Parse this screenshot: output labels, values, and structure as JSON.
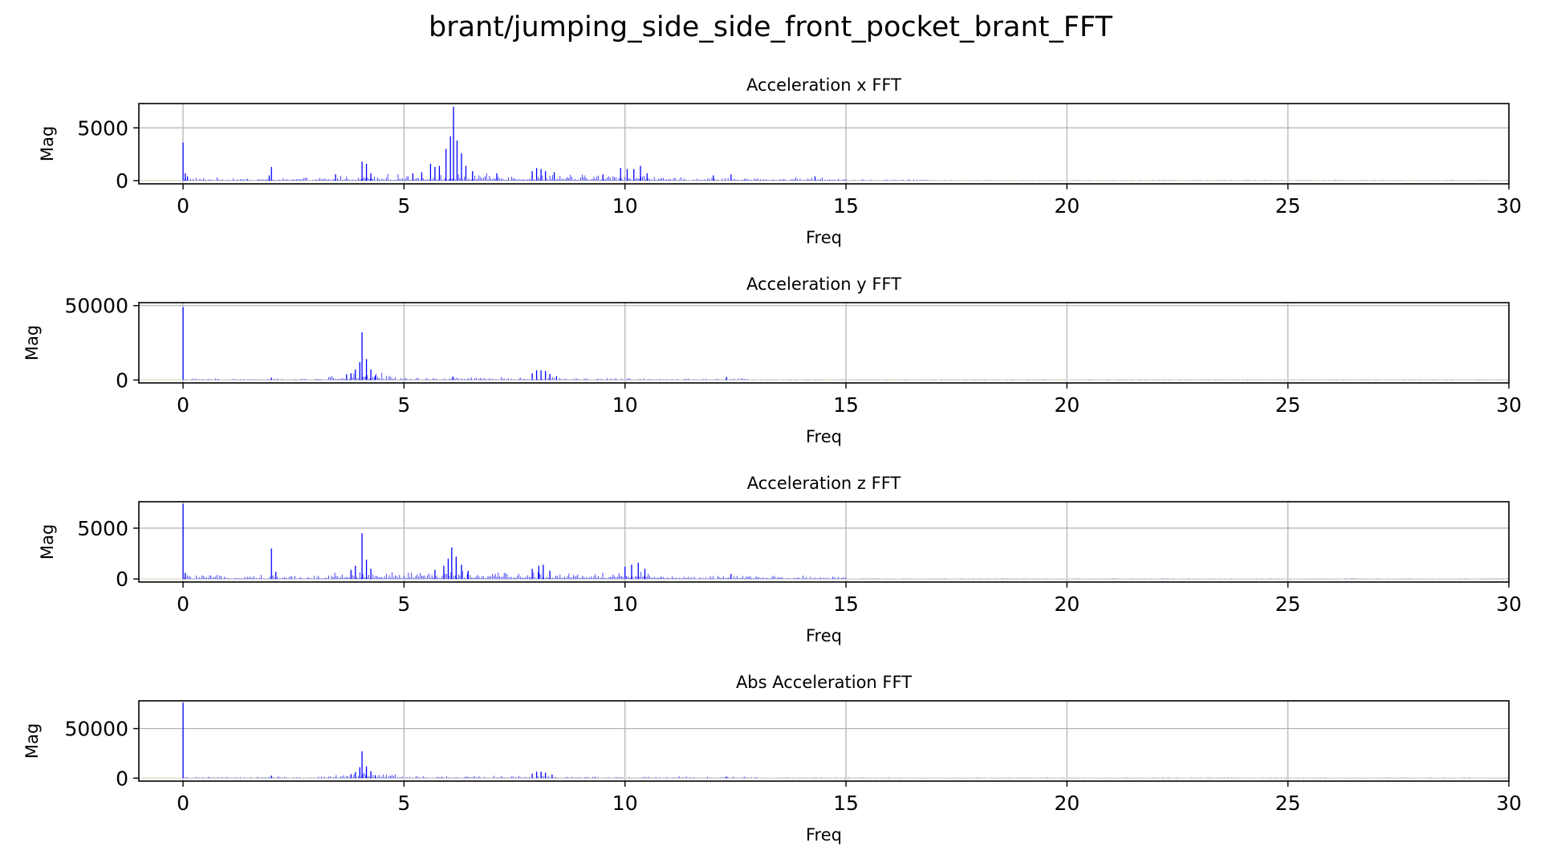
{
  "figure": {
    "title": "brant/jumping_side_side_front_pocket_brant_FFT"
  },
  "style": {
    "line_color": "#0000ff",
    "grid_color": "#b0b0b0",
    "axis_color": "#000000",
    "baseline_color": "#e6e6d8"
  },
  "chart_data": [
    {
      "type": "bar",
      "title": "Acceleration x FFT",
      "xlabel": "Freq",
      "ylabel": "Mag",
      "xlim": [
        -1,
        30
      ],
      "ylim": [
        -300,
        7300
      ],
      "xticks": [
        0,
        5,
        10,
        15,
        20,
        25,
        30
      ],
      "yticks": [
        0,
        5000
      ],
      "grid": true,
      "peaks": [
        {
          "x": 0.0,
          "y": 3600
        },
        {
          "x": 0.05,
          "y": 700
        },
        {
          "x": 0.1,
          "y": 400
        },
        {
          "x": 2.0,
          "y": 1300
        },
        {
          "x": 1.95,
          "y": 500
        },
        {
          "x": 3.45,
          "y": 600
        },
        {
          "x": 4.05,
          "y": 1800
        },
        {
          "x": 4.15,
          "y": 1600
        },
        {
          "x": 4.25,
          "y": 700
        },
        {
          "x": 5.2,
          "y": 700
        },
        {
          "x": 5.4,
          "y": 800
        },
        {
          "x": 5.6,
          "y": 1600
        },
        {
          "x": 5.7,
          "y": 1300
        },
        {
          "x": 5.8,
          "y": 1400
        },
        {
          "x": 5.95,
          "y": 3000
        },
        {
          "x": 6.05,
          "y": 4200
        },
        {
          "x": 6.12,
          "y": 7000
        },
        {
          "x": 6.2,
          "y": 3800
        },
        {
          "x": 6.3,
          "y": 2600
        },
        {
          "x": 6.4,
          "y": 1400
        },
        {
          "x": 6.55,
          "y": 900
        },
        {
          "x": 7.1,
          "y": 700
        },
        {
          "x": 7.9,
          "y": 900
        },
        {
          "x": 8.0,
          "y": 1200
        },
        {
          "x": 8.1,
          "y": 1100
        },
        {
          "x": 8.2,
          "y": 900
        },
        {
          "x": 8.4,
          "y": 800
        },
        {
          "x": 9.5,
          "y": 600
        },
        {
          "x": 9.9,
          "y": 1200
        },
        {
          "x": 10.05,
          "y": 1100
        },
        {
          "x": 10.2,
          "y": 1100
        },
        {
          "x": 10.35,
          "y": 1400
        },
        {
          "x": 10.5,
          "y": 700
        },
        {
          "x": 12.0,
          "y": 500
        },
        {
          "x": 12.4,
          "y": 600
        },
        {
          "x": 14.3,
          "y": 400
        }
      ],
      "noise": [
        {
          "from": 0,
          "to": 3.5,
          "level": 180
        },
        {
          "from": 3.5,
          "to": 6.7,
          "level": 380
        },
        {
          "from": 6.7,
          "to": 10.8,
          "level": 400
        },
        {
          "from": 10.8,
          "to": 15,
          "level": 200
        },
        {
          "from": 15,
          "to": 17,
          "level": 80
        },
        {
          "from": 17,
          "to": 30,
          "level": 30
        }
      ]
    },
    {
      "type": "bar",
      "title": "Acceleration y FFT",
      "xlabel": "Freq",
      "ylabel": "Mag",
      "xlim": [
        -1,
        30
      ],
      "ylim": [
        -2000,
        52000
      ],
      "xticks": [
        0,
        5,
        10,
        15,
        20,
        25,
        30
      ],
      "yticks": [
        0,
        50000
      ],
      "grid": true,
      "peaks": [
        {
          "x": 0.0,
          "y": 49000
        },
        {
          "x": 2.0,
          "y": 1500
        },
        {
          "x": 3.7,
          "y": 3500
        },
        {
          "x": 3.8,
          "y": 4500
        },
        {
          "x": 3.9,
          "y": 7000
        },
        {
          "x": 4.05,
          "y": 32000
        },
        {
          "x": 4.0,
          "y": 12000
        },
        {
          "x": 4.15,
          "y": 14000
        },
        {
          "x": 4.25,
          "y": 7000
        },
        {
          "x": 4.35,
          "y": 3000
        },
        {
          "x": 6.1,
          "y": 2200
        },
        {
          "x": 7.9,
          "y": 4500
        },
        {
          "x": 8.0,
          "y": 6500
        },
        {
          "x": 8.1,
          "y": 6500
        },
        {
          "x": 8.2,
          "y": 6000
        },
        {
          "x": 8.3,
          "y": 4000
        },
        {
          "x": 8.45,
          "y": 2500
        },
        {
          "x": 12.3,
          "y": 2000
        }
      ],
      "noise": [
        {
          "from": 0,
          "to": 3.3,
          "level": 600
        },
        {
          "from": 3.3,
          "to": 4.8,
          "level": 3000
        },
        {
          "from": 4.8,
          "to": 9,
          "level": 1200
        },
        {
          "from": 9,
          "to": 12.8,
          "level": 800
        },
        {
          "from": 12.8,
          "to": 30,
          "level": 250
        }
      ]
    },
    {
      "type": "bar",
      "title": "Acceleration z FFT",
      "xlabel": "Freq",
      "ylabel": "Mag",
      "xlim": [
        -1,
        30
      ],
      "ylim": [
        -300,
        7600
      ],
      "xticks": [
        0,
        5,
        10,
        15,
        20,
        25,
        30
      ],
      "yticks": [
        0,
        5000
      ],
      "grid": true,
      "peaks": [
        {
          "x": 0.0,
          "y": 7400
        },
        {
          "x": 0.05,
          "y": 600
        },
        {
          "x": 2.0,
          "y": 3000
        },
        {
          "x": 2.1,
          "y": 700
        },
        {
          "x": 3.8,
          "y": 900
        },
        {
          "x": 3.9,
          "y": 1300
        },
        {
          "x": 4.05,
          "y": 4500
        },
        {
          "x": 4.15,
          "y": 1900
        },
        {
          "x": 4.25,
          "y": 1000
        },
        {
          "x": 5.7,
          "y": 900
        },
        {
          "x": 5.9,
          "y": 1300
        },
        {
          "x": 6.0,
          "y": 2000
        },
        {
          "x": 6.08,
          "y": 3100
        },
        {
          "x": 6.18,
          "y": 2200
        },
        {
          "x": 6.3,
          "y": 1400
        },
        {
          "x": 6.45,
          "y": 800
        },
        {
          "x": 7.9,
          "y": 1000
        },
        {
          "x": 8.05,
          "y": 1300
        },
        {
          "x": 8.15,
          "y": 1400
        },
        {
          "x": 8.3,
          "y": 800
        },
        {
          "x": 10.0,
          "y": 1200
        },
        {
          "x": 10.15,
          "y": 1400
        },
        {
          "x": 10.3,
          "y": 1600
        },
        {
          "x": 10.45,
          "y": 1000
        },
        {
          "x": 12.4,
          "y": 500
        }
      ],
      "noise": [
        {
          "from": 0,
          "to": 3.4,
          "level": 250
        },
        {
          "from": 3.4,
          "to": 6.7,
          "level": 500
        },
        {
          "from": 6.7,
          "to": 10.8,
          "level": 450
        },
        {
          "from": 10.8,
          "to": 15,
          "level": 220
        },
        {
          "from": 15,
          "to": 30,
          "level": 40
        }
      ]
    },
    {
      "type": "bar",
      "title": "Abs Acceleration FFT",
      "xlabel": "Freq",
      "ylabel": "Mag",
      "xlim": [
        -1,
        30
      ],
      "ylim": [
        -3000,
        78000
      ],
      "xticks": [
        0,
        5,
        10,
        15,
        20,
        25,
        30
      ],
      "yticks": [
        0,
        50000
      ],
      "grid": true,
      "peaks": [
        {
          "x": 0.0,
          "y": 76000
        },
        {
          "x": 2.0,
          "y": 2500
        },
        {
          "x": 3.8,
          "y": 4000
        },
        {
          "x": 3.9,
          "y": 6000
        },
        {
          "x": 4.0,
          "y": 11000
        },
        {
          "x": 4.05,
          "y": 27000
        },
        {
          "x": 4.15,
          "y": 12000
        },
        {
          "x": 4.25,
          "y": 7000
        },
        {
          "x": 4.35,
          "y": 3000
        },
        {
          "x": 7.9,
          "y": 4500
        },
        {
          "x": 8.0,
          "y": 6500
        },
        {
          "x": 8.1,
          "y": 6500
        },
        {
          "x": 8.2,
          "y": 5500
        },
        {
          "x": 8.35,
          "y": 3500
        },
        {
          "x": 12.3,
          "y": 1500
        }
      ],
      "noise": [
        {
          "from": 0,
          "to": 3.3,
          "level": 900
        },
        {
          "from": 3.3,
          "to": 4.8,
          "level": 3500
        },
        {
          "from": 4.8,
          "to": 9,
          "level": 1600
        },
        {
          "from": 9,
          "to": 13,
          "level": 1000
        },
        {
          "from": 13,
          "to": 30,
          "level": 400
        }
      ]
    }
  ]
}
